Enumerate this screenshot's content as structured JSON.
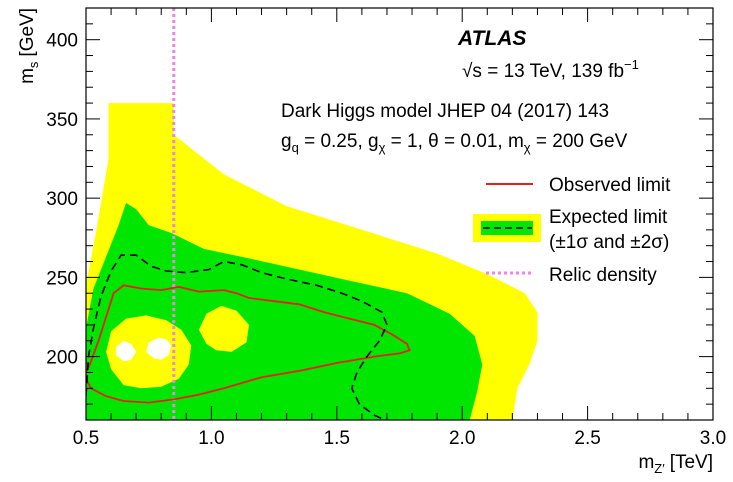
{
  "chart_data": {
    "type": "contour",
    "xlabel": "m",
    "xlabel_sub": "Z′",
    "xlabel_unit": "[TeV]",
    "ylabel": "m",
    "ylabel_sub": "s",
    "ylabel_unit": "[GeV]",
    "xlim": [
      0.5,
      3.0
    ],
    "ylim": [
      160,
      420
    ],
    "x_ticks": [
      0.5,
      1.0,
      1.5,
      2.0,
      2.5,
      3.0
    ],
    "x_tick_labels": [
      "0.5",
      "1.0",
      "1.5",
      "2.0",
      "2.5",
      "3.0"
    ],
    "y_ticks": [
      200,
      250,
      300,
      350,
      400
    ],
    "y_tick_labels": [
      "200",
      "250",
      "300",
      "350",
      "400"
    ],
    "grid": false,
    "legend_position": "right",
    "annotations": {
      "experiment": "ATLAS",
      "energy_prefix": "√s = 13 TeV, 139 fb",
      "energy_sup": "−1",
      "model": "Dark Higgs model JHEP 04 (2017) 143",
      "couplings": "g_q = 0.25, g_χ = 1, θ = 0.01, m_χ = 200 GeV"
    },
    "legend": [
      {
        "key": "observed",
        "label": "Observed limit"
      },
      {
        "key": "expected",
        "label_line1": "Expected limit",
        "label_line2": "(±1σ and ±2σ)"
      },
      {
        "key": "relic",
        "label": "Relic density"
      }
    ],
    "colors": {
      "band2": "#ffff00",
      "band1": "#00e600",
      "observed": "#e8201c",
      "expected": "#000000",
      "relic": "#ee82ee"
    },
    "relic_density_x": 0.85,
    "band2_outer": [
      [
        0.5,
        160
      ],
      [
        0.5,
        245
      ],
      [
        0.545,
        283
      ],
      [
        0.59,
        325
      ],
      [
        0.59,
        360
      ],
      [
        0.85,
        360
      ],
      [
        0.85,
        340
      ],
      [
        1.05,
        315
      ],
      [
        1.3,
        295
      ],
      [
        1.6,
        280
      ],
      [
        1.9,
        265
      ],
      [
        2.1,
        252
      ],
      [
        2.25,
        240
      ],
      [
        2.3,
        228
      ],
      [
        2.3,
        210
      ],
      [
        2.27,
        196
      ],
      [
        2.22,
        180
      ],
      [
        2.2,
        160
      ]
    ],
    "band2_holes": [
      [
        [
          0.65,
          197
        ],
        [
          0.62,
          201
        ],
        [
          0.62,
          206
        ],
        [
          0.65,
          210
        ],
        [
          0.68,
          208
        ],
        [
          0.7,
          203
        ],
        [
          0.68,
          198
        ]
      ],
      [
        [
          0.77,
          199
        ],
        [
          0.74,
          203
        ],
        [
          0.75,
          209
        ],
        [
          0.79,
          212
        ],
        [
          0.82,
          211
        ],
        [
          0.84,
          207
        ],
        [
          0.83,
          201
        ],
        [
          0.8,
          198
        ]
      ]
    ],
    "band1_outer": [
      [
        0.5,
        160
      ],
      [
        0.5,
        218
      ],
      [
        0.53,
        243
      ],
      [
        0.58,
        263
      ],
      [
        0.63,
        283
      ],
      [
        0.66,
        297
      ],
      [
        0.7,
        293
      ],
      [
        0.75,
        283
      ],
      [
        0.84,
        278
      ],
      [
        0.97,
        268
      ],
      [
        1.15,
        262
      ],
      [
        1.35,
        255
      ],
      [
        1.55,
        248
      ],
      [
        1.78,
        240
      ],
      [
        1.95,
        227
      ],
      [
        2.05,
        213
      ],
      [
        2.08,
        195
      ],
      [
        2.06,
        178
      ],
      [
        2.03,
        160
      ]
    ],
    "band1_holes": [
      [
        [
          0.65,
          182
        ],
        [
          0.6,
          192
        ],
        [
          0.58,
          203
        ],
        [
          0.6,
          216
        ],
        [
          0.66,
          224
        ],
        [
          0.74,
          226
        ],
        [
          0.82,
          223
        ],
        [
          0.88,
          217
        ],
        [
          0.92,
          207
        ],
        [
          0.91,
          195
        ],
        [
          0.87,
          186
        ],
        [
          0.8,
          181
        ],
        [
          0.72,
          180
        ]
      ],
      [
        [
          0.98,
          208
        ],
        [
          0.95,
          217
        ],
        [
          0.98,
          227
        ],
        [
          1.04,
          232
        ],
        [
          1.1,
          229
        ],
        [
          1.15,
          220
        ],
        [
          1.14,
          209
        ],
        [
          1.08,
          203
        ],
        [
          1.02,
          204
        ]
      ]
    ],
    "observed_limit": [
      [
        0.5,
        190
      ],
      [
        0.52,
        197
      ],
      [
        0.55,
        210
      ],
      [
        0.58,
        225
      ],
      [
        0.61,
        240
      ],
      [
        0.65,
        245
      ],
      [
        0.72,
        243
      ],
      [
        0.8,
        242
      ],
      [
        0.87,
        244
      ],
      [
        0.95,
        241
      ],
      [
        1.05,
        242
      ],
      [
        1.1,
        240
      ],
      [
        1.15,
        237
      ],
      [
        1.25,
        235
      ],
      [
        1.35,
        233
      ],
      [
        1.45,
        228
      ],
      [
        1.55,
        224
      ],
      [
        1.65,
        220
      ],
      [
        1.72,
        214
      ],
      [
        1.78,
        208
      ],
      [
        1.79,
        204
      ],
      [
        1.75,
        202
      ],
      [
        1.65,
        200
      ],
      [
        1.5,
        196
      ],
      [
        1.35,
        191
      ],
      [
        1.2,
        187
      ],
      [
        1.05,
        180
      ],
      [
        0.95,
        176
      ],
      [
        0.85,
        173
      ],
      [
        0.75,
        171
      ],
      [
        0.65,
        172
      ],
      [
        0.58,
        175
      ],
      [
        0.52,
        180
      ],
      [
        0.5,
        186
      ]
    ],
    "expected_limit": [
      [
        0.5,
        175
      ],
      [
        0.51,
        200
      ],
      [
        0.53,
        218
      ],
      [
        0.56,
        238
      ],
      [
        0.6,
        254
      ],
      [
        0.64,
        264
      ],
      [
        0.7,
        264
      ],
      [
        0.76,
        257
      ],
      [
        0.82,
        254
      ],
      [
        0.9,
        253
      ],
      [
        0.99,
        255
      ],
      [
        1.05,
        260
      ],
      [
        1.12,
        258
      ],
      [
        1.2,
        253
      ],
      [
        1.3,
        249
      ],
      [
        1.42,
        245
      ],
      [
        1.52,
        240
      ],
      [
        1.6,
        235
      ],
      [
        1.68,
        228
      ],
      [
        1.7,
        220
      ],
      [
        1.67,
        210
      ],
      [
        1.62,
        200
      ],
      [
        1.58,
        190
      ],
      [
        1.56,
        180
      ],
      [
        1.59,
        170
      ],
      [
        1.65,
        163
      ],
      [
        1.69,
        160
      ]
    ]
  }
}
